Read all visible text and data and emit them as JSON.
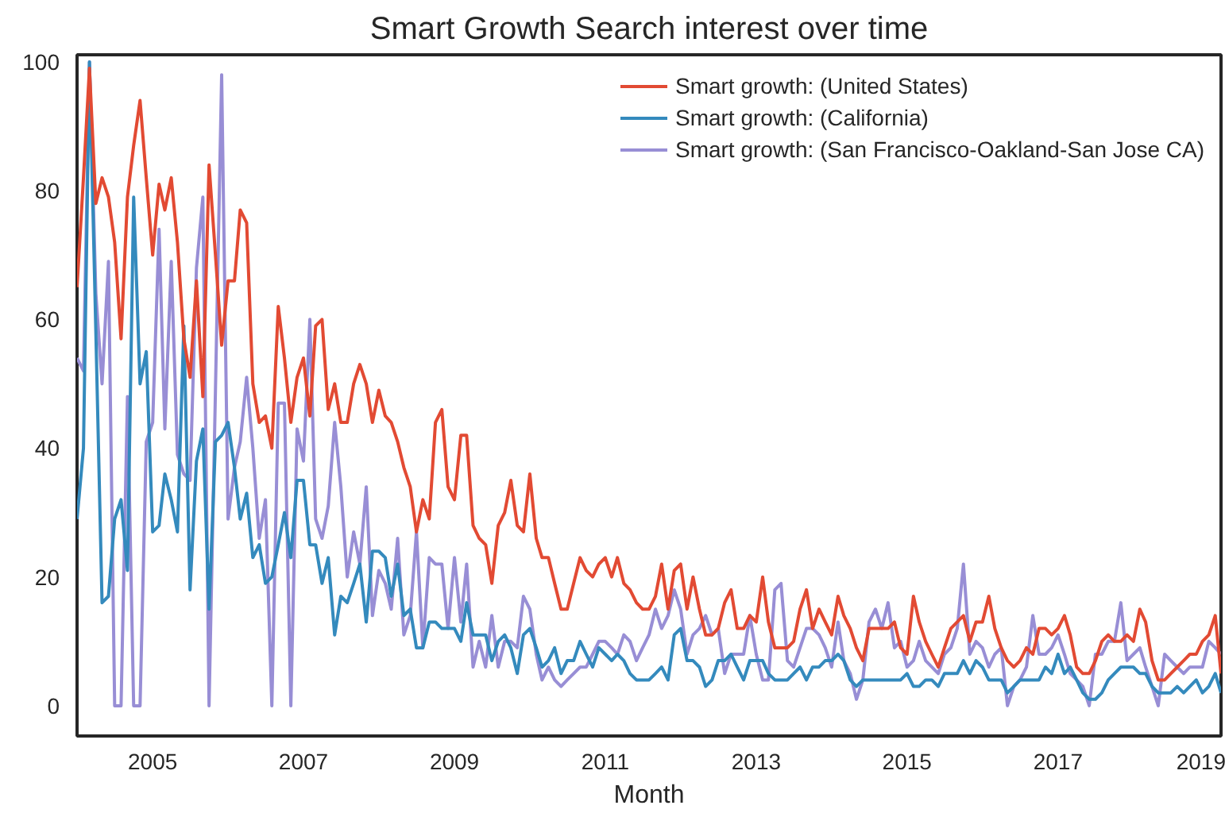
{
  "chart_data": {
    "type": "line",
    "title": "Smart Growth Search interest over time",
    "xlabel": "Month",
    "x": [
      "2004-01",
      "2004-02",
      "2004-03",
      "2004-04",
      "2004-05",
      "2004-06",
      "2004-07",
      "2004-08",
      "2004-09",
      "2004-10",
      "2004-11",
      "2004-12",
      "2005-01",
      "2005-02",
      "2005-03",
      "2005-04",
      "2005-05",
      "2005-06",
      "2005-07",
      "2005-08",
      "2005-09",
      "2005-10",
      "2005-11",
      "2005-12",
      "2006-01",
      "2006-02",
      "2006-03",
      "2006-04",
      "2006-05",
      "2006-06",
      "2006-07",
      "2006-08",
      "2006-09",
      "2006-10",
      "2006-11",
      "2006-12",
      "2007-01",
      "2007-02",
      "2007-03",
      "2007-04",
      "2007-05",
      "2007-06",
      "2007-07",
      "2007-08",
      "2007-09",
      "2007-10",
      "2007-11",
      "2007-12",
      "2008-01",
      "2008-02",
      "2008-03",
      "2008-04",
      "2008-05",
      "2008-06",
      "2008-07",
      "2008-08",
      "2008-09",
      "2008-10",
      "2008-11",
      "2008-12",
      "2009-01",
      "2009-02",
      "2009-03",
      "2009-04",
      "2009-05",
      "2009-06",
      "2009-07",
      "2009-08",
      "2009-09",
      "2009-10",
      "2009-11",
      "2009-12",
      "2010-01",
      "2010-02",
      "2010-03",
      "2010-04",
      "2010-05",
      "2010-06",
      "2010-07",
      "2010-08",
      "2010-09",
      "2010-10",
      "2010-11",
      "2010-12",
      "2011-01",
      "2011-02",
      "2011-03",
      "2011-04",
      "2011-05",
      "2011-06",
      "2011-07",
      "2011-08",
      "2011-09",
      "2011-10",
      "2011-11",
      "2011-12",
      "2012-01",
      "2012-02",
      "2012-03",
      "2012-04",
      "2012-05",
      "2012-06",
      "2012-07",
      "2012-08",
      "2012-09",
      "2012-10",
      "2012-11",
      "2012-12",
      "2013-01",
      "2013-02",
      "2013-03",
      "2013-04",
      "2013-05",
      "2013-06",
      "2013-07",
      "2013-08",
      "2013-09",
      "2013-10",
      "2013-11",
      "2013-12",
      "2014-01",
      "2014-02",
      "2014-03",
      "2014-04",
      "2014-05",
      "2014-06",
      "2014-07",
      "2014-08",
      "2014-09",
      "2014-10",
      "2014-11",
      "2014-12",
      "2015-01",
      "2015-02",
      "2015-03",
      "2015-04",
      "2015-05",
      "2015-06",
      "2015-07",
      "2015-08",
      "2015-09",
      "2015-10",
      "2015-11",
      "2015-12",
      "2016-01",
      "2016-02",
      "2016-03",
      "2016-04",
      "2016-05",
      "2016-06",
      "2016-07",
      "2016-08",
      "2016-09",
      "2016-10",
      "2016-11",
      "2016-12",
      "2017-01",
      "2017-02",
      "2017-03",
      "2017-04",
      "2017-05",
      "2017-06",
      "2017-07",
      "2017-08",
      "2017-09",
      "2017-10",
      "2017-11",
      "2017-12",
      "2018-01",
      "2018-02",
      "2018-03",
      "2018-04",
      "2018-05",
      "2018-06",
      "2018-07",
      "2018-08",
      "2018-09",
      "2018-10",
      "2018-11",
      "2018-12",
      "2019-01",
      "2019-02",
      "2019-03"
    ],
    "series": [
      {
        "name": "Smart growth: (United States)",
        "color": "#e24a33",
        "values": [
          65,
          82,
          99,
          78,
          82,
          79,
          72,
          57,
          79,
          87,
          94,
          82,
          70,
          81,
          77,
          82,
          72,
          57,
          51,
          66,
          48,
          84,
          70,
          56,
          66,
          66,
          77,
          75,
          50,
          44,
          45,
          40,
          62,
          54,
          44,
          51,
          54,
          45,
          59,
          60,
          46,
          50,
          44,
          44,
          50,
          53,
          50,
          44,
          49,
          45,
          44,
          41,
          37,
          34,
          27,
          32,
          29,
          44,
          46,
          34,
          32,
          42,
          42,
          28,
          26,
          25,
          19,
          28,
          30,
          35,
          28,
          27,
          36,
          26,
          23,
          23,
          19,
          15,
          15,
          19,
          23,
          21,
          20,
          22,
          23,
          20,
          23,
          19,
          18,
          16,
          15,
          15,
          17,
          22,
          15,
          21,
          22,
          15,
          20,
          15,
          11,
          11,
          12,
          16,
          18,
          12,
          12,
          14,
          13,
          20,
          13,
          9,
          9,
          9,
          10,
          15,
          18,
          12,
          15,
          13,
          11,
          17,
          14,
          12,
          9,
          7,
          12,
          12,
          12,
          12,
          13,
          9,
          8,
          17,
          13,
          10,
          8,
          6,
          9,
          12,
          13,
          14,
          10,
          13,
          13,
          17,
          12,
          9,
          7,
          6,
          7,
          9,
          8,
          12,
          12,
          11,
          12,
          14,
          11,
          6,
          5,
          5,
          7,
          10,
          11,
          10,
          10,
          11,
          10,
          15,
          13,
          7,
          4,
          4,
          5,
          6,
          7,
          8,
          8,
          10,
          11,
          14,
          5
        ]
      },
      {
        "name": "Smart growth: (California)",
        "color": "#348abd",
        "values": [
          29,
          40,
          100,
          58,
          16,
          17,
          29,
          32,
          21,
          79,
          50,
          55,
          27,
          28,
          36,
          32,
          27,
          59,
          18,
          38,
          43,
          15,
          41,
          42,
          44,
          37,
          29,
          33,
          23,
          25,
          19,
          20,
          25,
          30,
          23,
          35,
          35,
          25,
          25,
          19,
          23,
          11,
          17,
          16,
          19,
          22,
          13,
          24,
          24,
          23,
          17,
          22,
          14,
          15,
          9,
          9,
          13,
          13,
          12,
          12,
          12,
          10,
          16,
          11,
          11,
          11,
          7,
          10,
          11,
          9,
          5,
          11,
          12,
          9,
          6,
          7,
          9,
          5,
          7,
          7,
          10,
          8,
          6,
          9,
          8,
          7,
          8,
          7,
          5,
          4,
          4,
          4,
          5,
          6,
          4,
          11,
          12,
          7,
          7,
          6,
          3,
          4,
          7,
          7,
          8,
          6,
          4,
          7,
          7,
          7,
          5,
          4,
          4,
          4,
          5,
          6,
          4,
          6,
          6,
          7,
          7,
          8,
          7,
          4,
          3,
          4,
          4,
          4,
          4,
          4,
          4,
          4,
          5,
          3,
          3,
          4,
          4,
          3,
          5,
          5,
          5,
          7,
          5,
          7,
          6,
          4,
          4,
          4,
          2,
          3,
          4,
          4,
          4,
          4,
          6,
          5,
          8,
          5,
          6,
          4,
          2,
          1,
          1,
          2,
          4,
          5,
          6,
          6,
          6,
          5,
          5,
          3,
          2,
          2,
          2,
          3,
          2,
          3,
          4,
          2,
          3,
          5,
          2
        ]
      },
      {
        "name": "Smart growth: (San Francisco-Oakland-San Jose CA)",
        "color": "#988ed5",
        "values": [
          54,
          52,
          100,
          64,
          50,
          69,
          0,
          0,
          48,
          0,
          0,
          41,
          44,
          74,
          43,
          69,
          39,
          36,
          35,
          68,
          79,
          0,
          49,
          98,
          29,
          37,
          41,
          51,
          40,
          26,
          32,
          0,
          47,
          47,
          0,
          43,
          38,
          60,
          29,
          26,
          31,
          44,
          34,
          20,
          27,
          22,
          34,
          14,
          21,
          19,
          15,
          26,
          11,
          14,
          27,
          9,
          23,
          22,
          22,
          12,
          23,
          13,
          22,
          6,
          10,
          6,
          14,
          6,
          10,
          10,
          9,
          17,
          15,
          8,
          4,
          6,
          4,
          3,
          4,
          5,
          6,
          6,
          8,
          10,
          10,
          9,
          8,
          11,
          10,
          7,
          9,
          11,
          15,
          12,
          14,
          18,
          15,
          8,
          11,
          12,
          14,
          11,
          12,
          5,
          8,
          8,
          8,
          14,
          8,
          4,
          4,
          18,
          19,
          7,
          6,
          9,
          12,
          12,
          11,
          9,
          6,
          13,
          7,
          5,
          1,
          4,
          13,
          15,
          12,
          16,
          9,
          10,
          6,
          7,
          10,
          7,
          6,
          5,
          8,
          9,
          12,
          22,
          8,
          10,
          9,
          6,
          8,
          9,
          0,
          3,
          4,
          6,
          14,
          8,
          8,
          9,
          11,
          8,
          5,
          4,
          3,
          0,
          8,
          8,
          10,
          10,
          16,
          7,
          8,
          9,
          6,
          3,
          0,
          8,
          7,
          6,
          5,
          6,
          6,
          6,
          10,
          9,
          8
        ]
      }
    ],
    "xlim": [
      "2004-01",
      "2019-03"
    ],
    "ylim": [
      -4.7,
      101.1
    ],
    "xticks": [
      "2005",
      "2007",
      "2009",
      "2011",
      "2013",
      "2015",
      "2017",
      "2019"
    ],
    "yticks": [
      0,
      20,
      40,
      60,
      80,
      100
    ],
    "grid": false,
    "legend": "top right"
  }
}
